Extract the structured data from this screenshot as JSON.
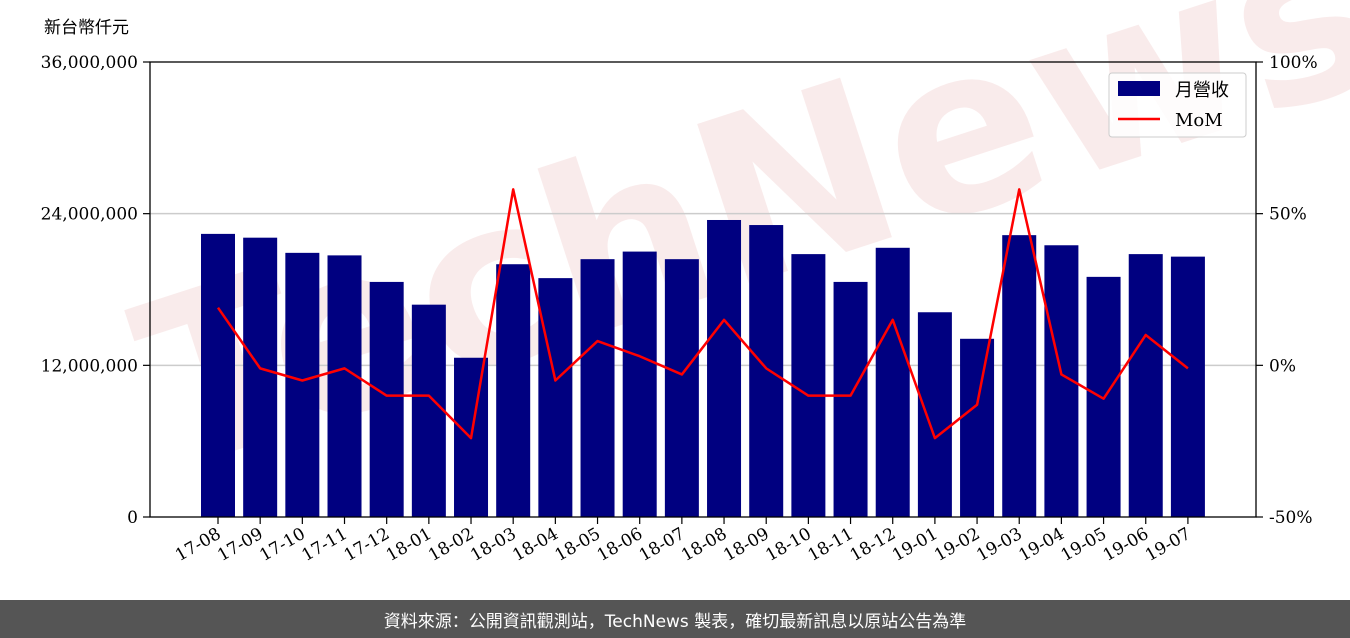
{
  "chart_data": {
    "type": "bar+line",
    "categories": [
      "17-08",
      "17-09",
      "17-10",
      "17-11",
      "17-12",
      "18-01",
      "18-02",
      "18-03",
      "18-04",
      "18-05",
      "18-06",
      "18-07",
      "18-08",
      "18-09",
      "18-10",
      "18-11",
      "18-12",
      "19-01",
      "19-02",
      "19-03",
      "19-04",
      "19-05",
      "19-06",
      "19-07"
    ],
    "series": [
      {
        "name": "月營收",
        "type": "bar",
        "axis": "left",
        "color": "#000080",
        "values": [
          22400000,
          22100000,
          20900000,
          20700000,
          18600000,
          16800000,
          12600000,
          20000000,
          18900000,
          20400000,
          21000000,
          20400000,
          23500000,
          23100000,
          20800000,
          18600000,
          21300000,
          16200000,
          14100000,
          22300000,
          21500000,
          19000000,
          20800000,
          20600000
        ]
      },
      {
        "name": "MoM",
        "type": "line",
        "axis": "right",
        "color": "#ff0000",
        "values": [
          19,
          -1,
          -5,
          -1,
          -10,
          -10,
          -24,
          58,
          -5,
          8,
          3,
          -3,
          15,
          -1,
          -10,
          -10,
          15,
          -24,
          -13,
          58,
          -3,
          -11,
          10,
          -1
        ]
      }
    ],
    "ylabel": "新台幣仟元",
    "ylim": [
      0,
      36000000
    ],
    "y_ticks": [
      "0",
      "12,000,000",
      "24,000,000",
      "36,000,000"
    ],
    "y2lim": [
      -50,
      100
    ],
    "y2_ticks": [
      "-50%",
      "0%",
      "50%",
      "100%"
    ],
    "grid": "horizontal",
    "legend_position": "top-right"
  },
  "watermark": "TechNews",
  "footer": "資料來源：公開資訊觀測站，TechNews 製表，確切最新訊息以原站公告為準"
}
